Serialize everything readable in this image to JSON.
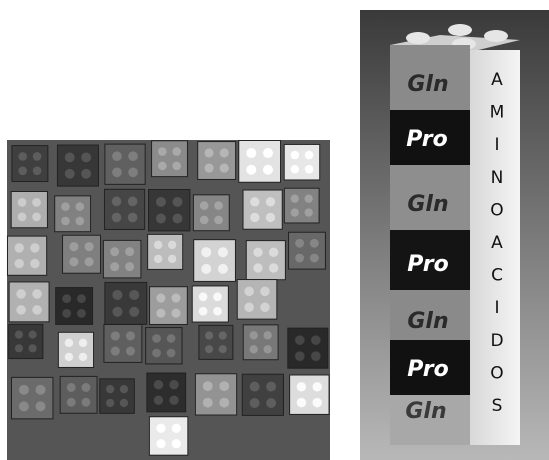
{
  "tower": {
    "labels": [
      "Gln",
      "Pro",
      "Gln",
      "Pro",
      "Gln",
      "Pro",
      "Gln"
    ],
    "side_letters": [
      "A",
      "M",
      "I",
      "N",
      "O",
      "A",
      "C",
      "I",
      "D",
      "O",
      "S"
    ]
  }
}
